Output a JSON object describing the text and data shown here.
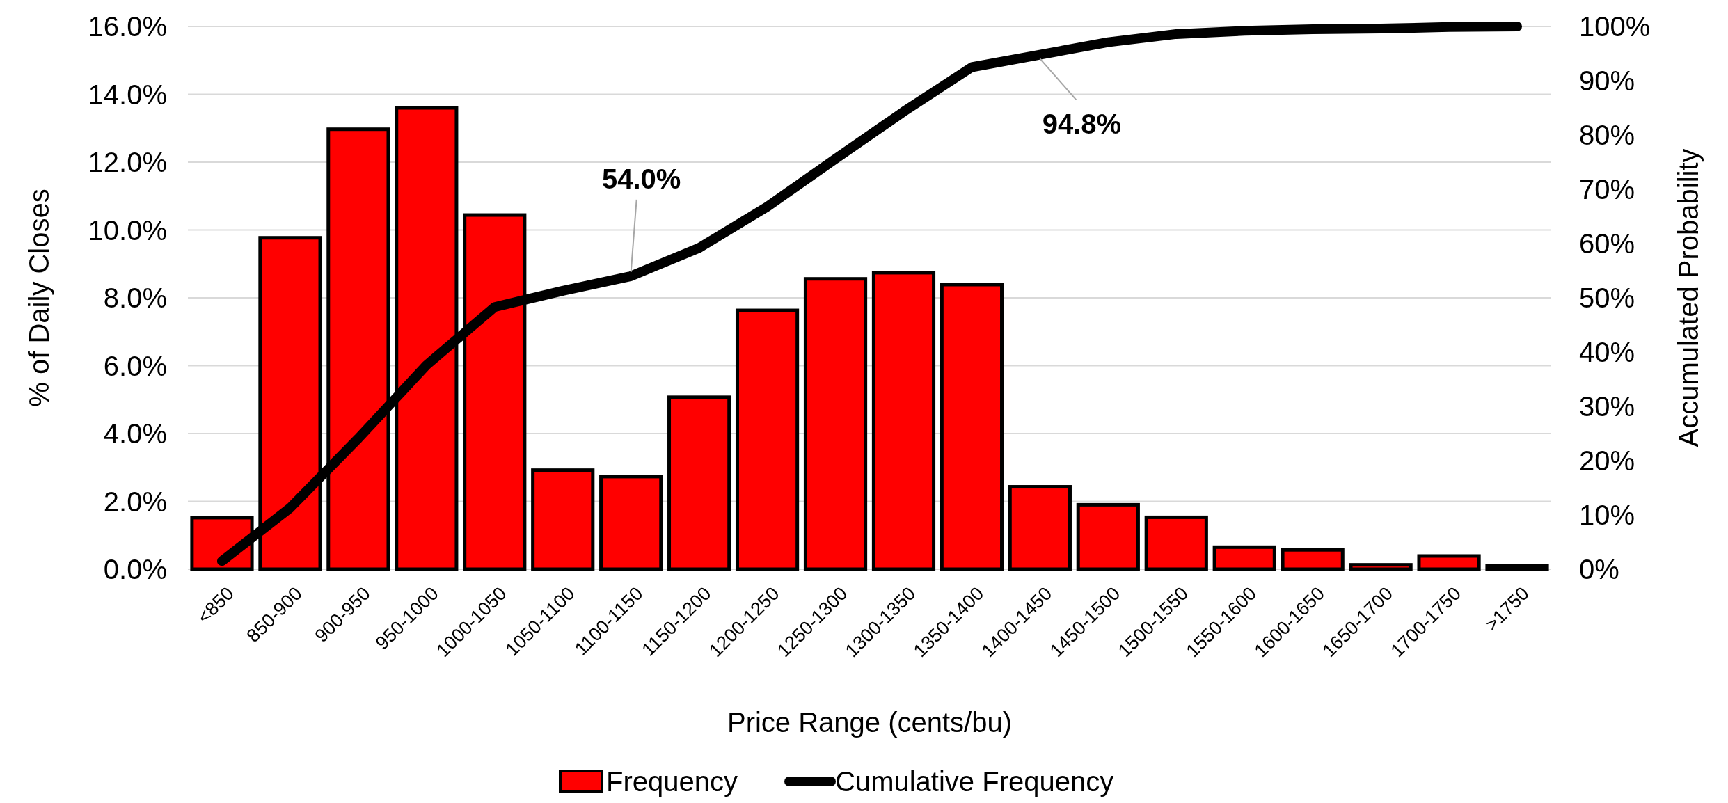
{
  "chart_data": {
    "type": "bar",
    "xlabel": "Price Range (cents/bu)",
    "ylabel": "% of Daily Closes",
    "y2label": "Accumulated Probability",
    "categories": [
      "<850",
      "850-900",
      "900-950",
      "950-1000",
      "1000-1050",
      "1050-1100",
      "1100-1150",
      "1150-1200",
      "1200-1250",
      "1250-1300",
      "1300-1350",
      "1350-1400",
      "1400-1450",
      "1450-1500",
      "1500-1550",
      "1550-1600",
      "1600-1650",
      "1650-1700",
      "1700-1750",
      ">1750"
    ],
    "series": [
      {
        "name": "Frequency",
        "color": "#ff0000",
        "values": [
          1.52,
          9.77,
          12.97,
          13.6,
          10.44,
          2.92,
          2.73,
          5.07,
          7.63,
          8.56,
          8.74,
          8.39,
          2.43,
          1.9,
          1.53,
          0.65,
          0.57,
          0.13,
          0.39,
          0.1
        ]
      },
      {
        "name": "Cumulative Frequency",
        "type": "line",
        "axis": "y2",
        "color": "#000000",
        "values": [
          1.5,
          11.3,
          24.1,
          37.6,
          48.3,
          51.3,
          54.0,
          59.2,
          66.8,
          75.6,
          84.3,
          92.5,
          94.8,
          97.1,
          98.6,
          99.2,
          99.5,
          99.6,
          99.9,
          100
        ]
      }
    ],
    "ylim": [
      0,
      16
    ],
    "yticks": [
      {
        "value": 0,
        "label": "0.0%"
      },
      {
        "value": 2,
        "label": "2.0%"
      },
      {
        "value": 4,
        "label": "4.0%"
      },
      {
        "value": 6,
        "label": "6.0%"
      },
      {
        "value": 8,
        "label": "8.0%"
      },
      {
        "value": 10,
        "label": "10.0%"
      },
      {
        "value": 12,
        "label": "12.0%"
      },
      {
        "value": 14,
        "label": "14.0%"
      },
      {
        "value": 16,
        "label": "16.0%"
      }
    ],
    "y2lim": [
      0,
      100
    ],
    "y2ticks": [
      {
        "value": 0,
        "label": "0%"
      },
      {
        "value": 10,
        "label": "10%"
      },
      {
        "value": 20,
        "label": "20%"
      },
      {
        "value": 30,
        "label": "30%"
      },
      {
        "value": 40,
        "label": "40%"
      },
      {
        "value": 50,
        "label": "50%"
      },
      {
        "value": 60,
        "label": "60%"
      },
      {
        "value": 70,
        "label": "70%"
      },
      {
        "value": 80,
        "label": "80%"
      },
      {
        "value": 90,
        "label": "90%"
      },
      {
        "value": 100,
        "label": "100%"
      }
    ],
    "annotations": [
      {
        "text": "54.0%",
        "x": "1100-1150",
        "y": 8.64
      },
      {
        "text": "94.8%",
        "x": "1400-1450",
        "y": 15.17
      }
    ],
    "grid": "y",
    "legend": "bottom",
    "marker": "none",
    "line_style": "solid"
  }
}
